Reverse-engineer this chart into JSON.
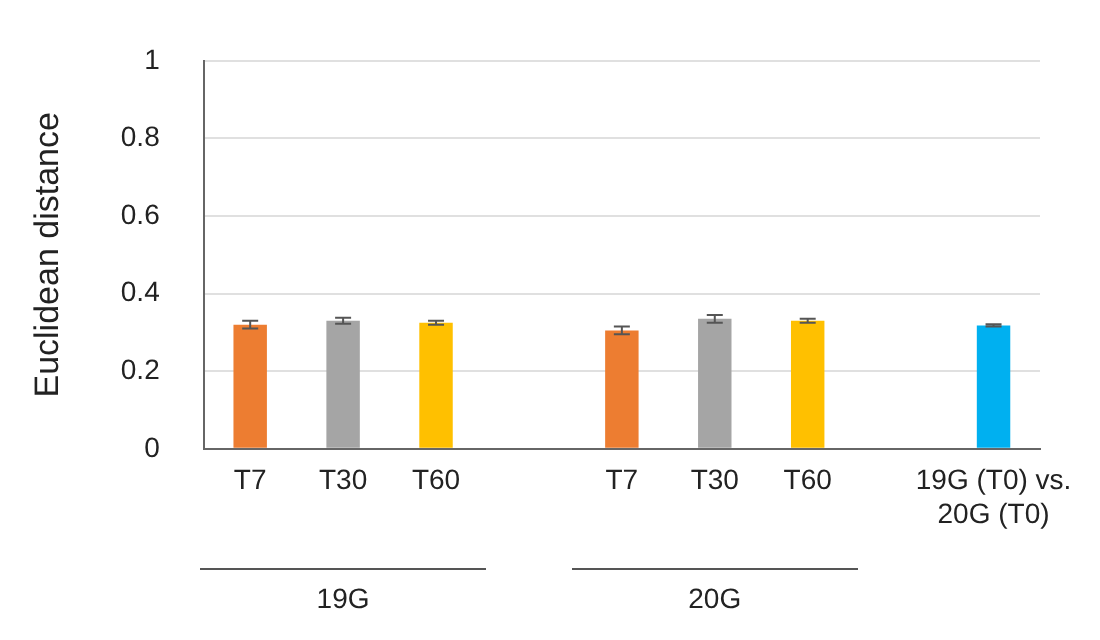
{
  "chart_data": {
    "type": "bar",
    "ylabel": "Euclidean distance",
    "categories": [
      "T7",
      "T30",
      "T60",
      null,
      "T7",
      "T30",
      "T60",
      null,
      "19G (T0) vs. 20G (T0)"
    ],
    "values": [
      0.32,
      0.33,
      0.325,
      null,
      0.305,
      0.335,
      0.33,
      null,
      0.318
    ],
    "colors": [
      "#ed7d31",
      "#a5a5a5",
      "#ffc000",
      null,
      "#ed7d31",
      "#a5a5a5",
      "#ffc000",
      null,
      "#00b0f0"
    ],
    "errors": [
      0.01,
      0.008,
      0.005,
      null,
      0.01,
      0.01,
      0.005,
      null,
      0.003
    ],
    "annotations": [
      "19G",
      "20G"
    ],
    "ylim": [
      0,
      1
    ],
    "yticks": [
      0,
      0.2,
      0.4,
      0.6,
      0.8,
      1
    ],
    "grid": "y"
  }
}
